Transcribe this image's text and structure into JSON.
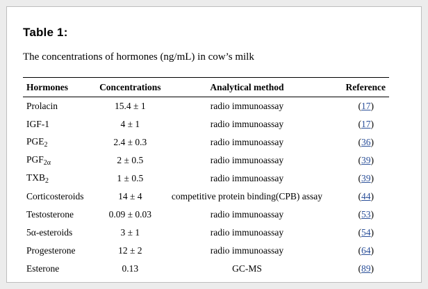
{
  "table_title": "Table 1:",
  "table_caption": "The concentrations of hormones (ng/mL) in cow’s milk",
  "columns": [
    "Hormones",
    "Concentrations",
    "Analytical method",
    "Reference"
  ],
  "rows": [
    {
      "hormone": "Prolacin",
      "sub": "",
      "concentration": "15.4 ± 1",
      "method": "radio immunoassay",
      "ref": "17"
    },
    {
      "hormone": "IGF-1",
      "sub": "",
      "concentration": "4 ± 1",
      "method": "radio immunoassay",
      "ref": "17"
    },
    {
      "hormone": "PGE",
      "sub": "2",
      "concentration": "2.4 ± 0.3",
      "method": "radio immunoassay",
      "ref": "36"
    },
    {
      "hormone": "PGF",
      "sub": "2α",
      "concentration": "2 ± 0.5",
      "method": "radio immunoassay",
      "ref": "39"
    },
    {
      "hormone": "TXB",
      "sub": "2",
      "concentration": "1 ± 0.5",
      "method": "radio immunoassay",
      "ref": "39"
    },
    {
      "hormone": "Corticosteroids",
      "sub": "",
      "concentration": "14 ± 4",
      "method": "competitive protein binding(CPB) assay",
      "ref": "44"
    },
    {
      "hormone": "Testosterone",
      "sub": "",
      "concentration": "0.09 ± 0.03",
      "method": "radio immunoassay",
      "ref": "53"
    },
    {
      "hormone": "5α-esteroids",
      "sub": "",
      "concentration": "3 ± 1",
      "method": "radio immunoassay",
      "ref": "54"
    },
    {
      "hormone": "Progesterone",
      "sub": "",
      "concentration": "12 ± 2",
      "method": "radio immunoassay",
      "ref": "64"
    },
    {
      "hormone": "Esterone",
      "sub": "",
      "concentration": "0.13",
      "method": "GC-MS",
      "ref": "89"
    }
  ],
  "colors": {
    "link": "#2a4f99",
    "background": "#ececec",
    "card": "#ffffff"
  }
}
